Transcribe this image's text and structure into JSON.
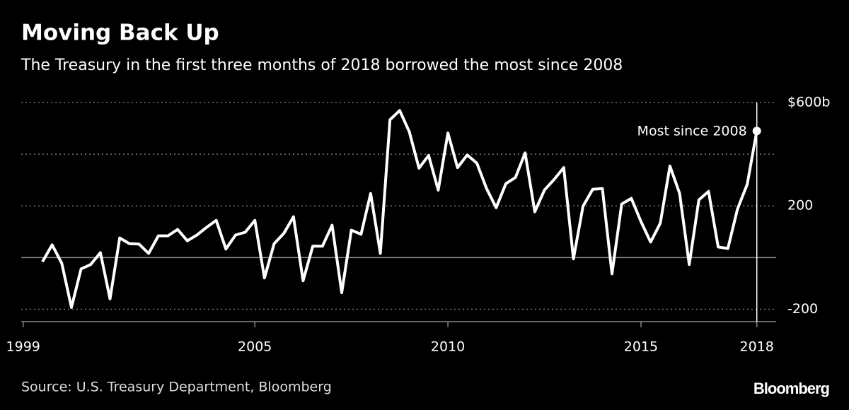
{
  "chart_data": {
    "type": "line",
    "title": "Moving Back Up",
    "subtitle": "The Treasury in the first three months of 2018 borrowed the most since 2008",
    "source": "Source: U.S. Treasury Department, Bloomberg",
    "brand": "Bloomberg",
    "annotation": "Most since 2008",
    "x": [
      1999.5,
      1999.75,
      2000,
      2000.25,
      2000.5,
      2000.75,
      2001,
      2001.25,
      2001.5,
      2001.75,
      2002,
      2002.25,
      2002.5,
      2002.75,
      2003,
      2003.25,
      2003.5,
      2003.75,
      2004,
      2004.25,
      2004.5,
      2004.75,
      2005,
      2005.25,
      2005.5,
      2005.75,
      2006,
      2006.25,
      2006.5,
      2006.75,
      2007,
      2007.25,
      2007.5,
      2007.75,
      2008,
      2008.25,
      2008.5,
      2008.75,
      2009,
      2009.25,
      2009.5,
      2009.75,
      2010,
      2010.25,
      2010.5,
      2010.75,
      2011,
      2011.25,
      2011.5,
      2011.75,
      2012,
      2012.25,
      2012.5,
      2012.75,
      2013,
      2013.25,
      2013.5,
      2013.75,
      2014,
      2014.25,
      2014.5,
      2014.75,
      2015,
      2015.25,
      2015.5,
      2015.75,
      2016,
      2016.25,
      2016.5,
      2016.75,
      2017,
      2017.25,
      2017.5,
      2017.75,
      2018
    ],
    "series": [
      {
        "color": "#ffffff",
        "values": [
          -16,
          49,
          -22,
          -193,
          -44,
          -27,
          19,
          -160,
          76,
          54,
          52,
          16,
          84,
          84,
          109,
          65,
          87,
          117,
          144,
          33,
          87,
          98,
          144,
          -79,
          54,
          93,
          158,
          -90,
          44,
          44,
          125,
          -136,
          106,
          90,
          248,
          16,
          533,
          569,
          487,
          346,
          395,
          261,
          482,
          348,
          397,
          365,
          267,
          193,
          286,
          310,
          405,
          177,
          261,
          302,
          348,
          -5,
          199,
          264,
          267,
          -63,
          207,
          229,
          139,
          60,
          133,
          354,
          248,
          -27,
          223,
          256,
          41,
          35,
          188,
          283,
          490
        ]
      }
    ],
    "xlim": [
      1998.95,
      2018.5
    ],
    "xticks": [
      1999,
      2005,
      2010,
      2015,
      2018
    ],
    "ylim": [
      -248,
      600
    ],
    "yticks": [
      {
        "value": -200,
        "label": "-200"
      },
      {
        "value": 0,
        "label": null
      },
      200,
      {
        "value": 400,
        "label": null
      },
      {
        "value": 600,
        "label": "$600b"
      }
    ],
    "grid": true
  }
}
